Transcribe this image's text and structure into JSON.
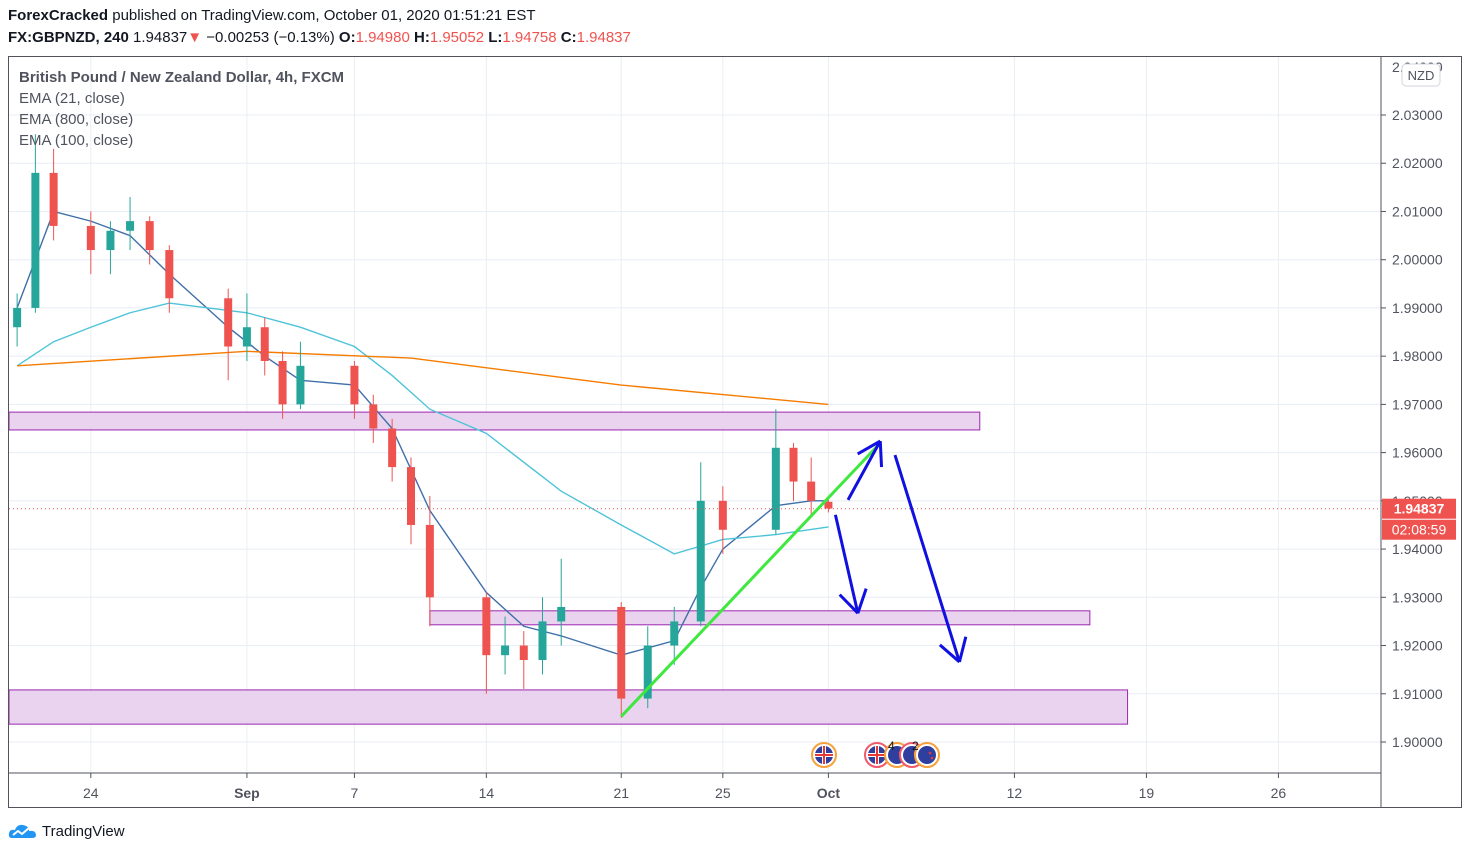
{
  "header": {
    "author": "ForexCracked",
    "published": "published on TradingView.com, October 01, 2020 01:51:21 EST",
    "symbol": "FX:GBPNZD, 240",
    "last": "1.94837",
    "change": "−0.00253 (−0.13%)",
    "o_label": "O:",
    "o": "1.94980",
    "h_label": "H:",
    "h": "1.95052",
    "l_label": "L:",
    "l": "1.94758",
    "c_label": "C:",
    "c": "1.94837"
  },
  "legend": {
    "title": "British Pound / New Zealand Dollar, 4h, FXCM",
    "ema1": "EMA (21, close)",
    "ema2": "EMA (800, close)",
    "ema3": "EMA (100, close)"
  },
  "price_axis": {
    "currency": "NZD",
    "last_price_label": "1.94837",
    "countdown": "02:08:59"
  },
  "events": {
    "count1": "4",
    "count2": "2"
  },
  "brand": "TradingView",
  "colors": {
    "up": "#26a69a",
    "down": "#ef5350",
    "ema21": "#3f6fa8",
    "ema100": "#4ec3d8",
    "ema800": "#f57c00",
    "zone_fill": "#e9d3ee",
    "zone_border": "#9c27b0",
    "trend": "#3ee83e",
    "arrows": "#1010e0"
  },
  "chart_data": {
    "type": "candlestick",
    "title": "British Pound / New Zealand Dollar, 4h, FXCM",
    "ylim": [
      1.895,
      2.04
    ],
    "grid": true,
    "y_ticks": [
      "2.03000",
      "2.02000",
      "2.01000",
      "2.00000",
      "1.99000",
      "1.98000",
      "1.97000",
      "1.96000",
      "1.95000",
      "1.94000",
      "1.93000",
      "1.92000",
      "1.91000",
      "1.90000"
    ],
    "x_ticks": [
      {
        "label": "24",
        "date": "2020-08-24"
      },
      {
        "label": "Sep",
        "date": "2020-09-01"
      },
      {
        "label": "7",
        "date": "2020-09-07"
      },
      {
        "label": "14",
        "date": "2020-09-14"
      },
      {
        "label": "21",
        "date": "2020-09-21"
      },
      {
        "label": "25",
        "date": "2020-09-25"
      },
      {
        "label": "Oct",
        "date": "2020-10-01"
      },
      {
        "label": "12",
        "date": "2020-10-12"
      },
      {
        "label": "19",
        "date": "2020-10-19"
      },
      {
        "label": "26",
        "date": "2020-10-26"
      }
    ],
    "candles": [
      {
        "d": "2020-08-20",
        "o": 1.986,
        "h": 1.993,
        "l": 1.982,
        "c": 1.99
      },
      {
        "d": "2020-08-21",
        "o": 1.99,
        "h": 2.026,
        "l": 1.989,
        "c": 2.018
      },
      {
        "d": "2020-08-22",
        "o": 2.018,
        "h": 2.023,
        "l": 2.004,
        "c": 2.007
      },
      {
        "d": "2020-08-24",
        "o": 2.007,
        "h": 2.01,
        "l": 1.997,
        "c": 2.002
      },
      {
        "d": "2020-08-25",
        "o": 2.002,
        "h": 2.008,
        "l": 1.997,
        "c": 2.006
      },
      {
        "d": "2020-08-26",
        "o": 2.006,
        "h": 2.013,
        "l": 2.002,
        "c": 2.008
      },
      {
        "d": "2020-08-27",
        "o": 2.008,
        "h": 2.009,
        "l": 1.999,
        "c": 2.002
      },
      {
        "d": "2020-08-28",
        "o": 2.002,
        "h": 2.003,
        "l": 1.989,
        "c": 1.992
      },
      {
        "d": "2020-08-31",
        "o": 1.992,
        "h": 1.994,
        "l": 1.975,
        "c": 1.982
      },
      {
        "d": "2020-09-01",
        "o": 1.982,
        "h": 1.993,
        "l": 1.979,
        "c": 1.986
      },
      {
        "d": "2020-09-02",
        "o": 1.986,
        "h": 1.988,
        "l": 1.976,
        "c": 1.979
      },
      {
        "d": "2020-09-03",
        "o": 1.979,
        "h": 1.981,
        "l": 1.967,
        "c": 1.97
      },
      {
        "d": "2020-09-04",
        "o": 1.97,
        "h": 1.983,
        "l": 1.969,
        "c": 1.978
      },
      {
        "d": "2020-09-07",
        "o": 1.978,
        "h": 1.979,
        "l": 1.967,
        "c": 1.97
      },
      {
        "d": "2020-09-08",
        "o": 1.97,
        "h": 1.972,
        "l": 1.962,
        "c": 1.965
      },
      {
        "d": "2020-09-09",
        "o": 1.965,
        "h": 1.967,
        "l": 1.954,
        "c": 1.957
      },
      {
        "d": "2020-09-10",
        "o": 1.957,
        "h": 1.959,
        "l": 1.941,
        "c": 1.945
      },
      {
        "d": "2020-09-11",
        "o": 1.945,
        "h": 1.951,
        "l": 1.924,
        "c": 1.93
      },
      {
        "d": "2020-09-14",
        "o": 1.93,
        "h": 1.931,
        "l": 1.91,
        "c": 1.918
      },
      {
        "d": "2020-09-15",
        "o": 1.918,
        "h": 1.926,
        "l": 1.914,
        "c": 1.92
      },
      {
        "d": "2020-09-16",
        "o": 1.92,
        "h": 1.923,
        "l": 1.911,
        "c": 1.917
      },
      {
        "d": "2020-09-17",
        "o": 1.917,
        "h": 1.93,
        "l": 1.914,
        "c": 1.925
      },
      {
        "d": "2020-09-18",
        "o": 1.925,
        "h": 1.938,
        "l": 1.92,
        "c": 1.928
      },
      {
        "d": "2020-09-21",
        "o": 1.928,
        "h": 1.929,
        "l": 1.905,
        "c": 1.909
      },
      {
        "d": "2020-09-22",
        "o": 1.909,
        "h": 1.924,
        "l": 1.907,
        "c": 1.92
      },
      {
        "d": "2020-09-23",
        "o": 1.92,
        "h": 1.928,
        "l": 1.916,
        "c": 1.925
      },
      {
        "d": "2020-09-24",
        "o": 1.925,
        "h": 1.958,
        "l": 1.924,
        "c": 1.95
      },
      {
        "d": "2020-09-25",
        "o": 1.95,
        "h": 1.953,
        "l": 1.939,
        "c": 1.944
      },
      {
        "d": "2020-09-28",
        "o": 1.944,
        "h": 1.969,
        "l": 1.943,
        "c": 1.961
      },
      {
        "d": "2020-09-29",
        "o": 1.961,
        "h": 1.962,
        "l": 1.95,
        "c": 1.954
      },
      {
        "d": "2020-09-30",
        "o": 1.954,
        "h": 1.959,
        "l": 1.947,
        "c": 1.95
      },
      {
        "d": "2020-10-01",
        "o": 1.9498,
        "h": 1.9505,
        "l": 1.9476,
        "c": 1.9484
      }
    ],
    "series": [
      {
        "name": "EMA (21, close)",
        "color": "#3f6fa8",
        "points": [
          [
            "2020-08-20",
            1.99
          ],
          [
            "2020-08-22",
            2.01
          ],
          [
            "2020-08-24",
            2.008
          ],
          [
            "2020-08-26",
            2.005
          ],
          [
            "2020-08-28",
            1.997
          ],
          [
            "2020-08-31",
            1.986
          ],
          [
            "2020-09-02",
            1.98
          ],
          [
            "2020-09-04",
            1.975
          ],
          [
            "2020-09-07",
            1.974
          ],
          [
            "2020-09-09",
            1.965
          ],
          [
            "2020-09-11",
            1.948
          ],
          [
            "2020-09-14",
            1.931
          ],
          [
            "2020-09-16",
            1.924
          ],
          [
            "2020-09-18",
            1.922
          ],
          [
            "2020-09-21",
            1.918
          ],
          [
            "2020-09-23",
            1.921
          ],
          [
            "2020-09-24",
            1.932
          ],
          [
            "2020-09-25",
            1.94
          ],
          [
            "2020-09-28",
            1.949
          ],
          [
            "2020-09-30",
            1.95
          ],
          [
            "2020-10-01",
            1.95
          ]
        ]
      },
      {
        "name": "EMA (100, close)",
        "color": "#4ec3d8",
        "points": [
          [
            "2020-08-20",
            1.978
          ],
          [
            "2020-08-22",
            1.983
          ],
          [
            "2020-08-24",
            1.986
          ],
          [
            "2020-08-26",
            1.989
          ],
          [
            "2020-08-28",
            1.991
          ],
          [
            "2020-09-01",
            1.989
          ],
          [
            "2020-09-04",
            1.986
          ],
          [
            "2020-09-07",
            1.982
          ],
          [
            "2020-09-09",
            1.976
          ],
          [
            "2020-09-11",
            1.969
          ],
          [
            "2020-09-14",
            1.964
          ],
          [
            "2020-09-18",
            1.952
          ],
          [
            "2020-09-21",
            1.945
          ],
          [
            "2020-09-23",
            1.939
          ],
          [
            "2020-09-25",
            1.942
          ],
          [
            "2020-09-28",
            1.943
          ],
          [
            "2020-10-01",
            1.9446
          ]
        ]
      },
      {
        "name": "EMA (800, close)",
        "color": "#f57c00",
        "points": [
          [
            "2020-08-20",
            1.978
          ],
          [
            "2020-09-01",
            1.981
          ],
          [
            "2020-09-10",
            1.9796
          ],
          [
            "2020-09-21",
            1.974
          ],
          [
            "2020-10-01",
            1.97
          ]
        ]
      }
    ],
    "drawings": {
      "zones": [
        {
          "from": "2020-08-20",
          "to": "2020-10-10",
          "low": 1.9647,
          "high": 1.9684
        },
        {
          "from": "2020-09-11",
          "to": "2020-10-16",
          "low": 1.9243,
          "high": 1.9272
        },
        {
          "from": "2020-08-20",
          "to": "2020-10-18",
          "low": 1.9037,
          "high": 1.9108
        }
      ],
      "trend_line": {
        "from": [
          "2020-09-21",
          1.9053
        ],
        "to": [
          "2020-10-04T14:00",
          1.962
        ]
      },
      "arrows": [
        {
          "from": [
            "2020-10-02T16:00",
            1.9502
          ],
          "to": [
            "2020-10-04T14:00",
            1.9624
          ]
        },
        {
          "from": [
            "2020-10-01T22:00",
            1.9471
          ],
          "to": [
            "2020-10-03T06:00",
            1.9267
          ]
        },
        {
          "from": [
            "2020-10-05T11:00",
            1.9595
          ],
          "to": [
            "2020-10-09T07:00",
            1.9166
          ]
        }
      ]
    },
    "last_price": 1.94837
  }
}
